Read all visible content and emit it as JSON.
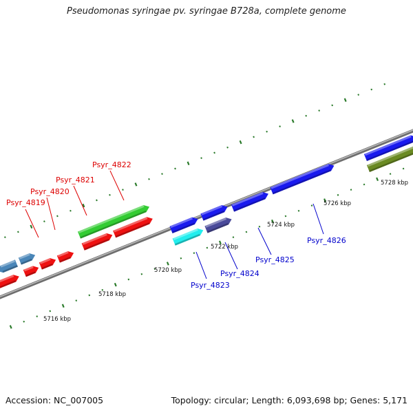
{
  "title": "Pseudomonas syringae pv. syringae B728a, complete genome",
  "footer": {
    "accession": "Accession: NC_007005",
    "summary": "Topology: circular; Length: 6,093,698 bp; Genes: 5,171"
  },
  "colors": {
    "backbone": "#8a8a8a",
    "tick": "#2a7a2a",
    "red_label": "#dd0000",
    "blue_label": "#0000cc",
    "gene_red": "#ee1111",
    "gene_steel": "#4a86b8",
    "gene_green": "#33cc33",
    "gene_blue": "#1a1aee",
    "gene_cyan": "#22eeee",
    "gene_slate": "#4a4a9a",
    "gene_olive": "#6a8a22"
  },
  "scale": {
    "kbp_labels": [
      "5716 kbp",
      "5718 kbp",
      "5720 kbp",
      "5722 kbp",
      "5724 kbp",
      "5726 kbp",
      "5728 kbp"
    ]
  },
  "gene_labels_top": [
    "Psyr_4819",
    "Psyr_4820",
    "Psyr_4821",
    "Psyr_4822"
  ],
  "gene_labels_bottom": [
    "Psyr_4823",
    "Psyr_4824",
    "Psyr_4825",
    "Psyr_4826"
  ]
}
